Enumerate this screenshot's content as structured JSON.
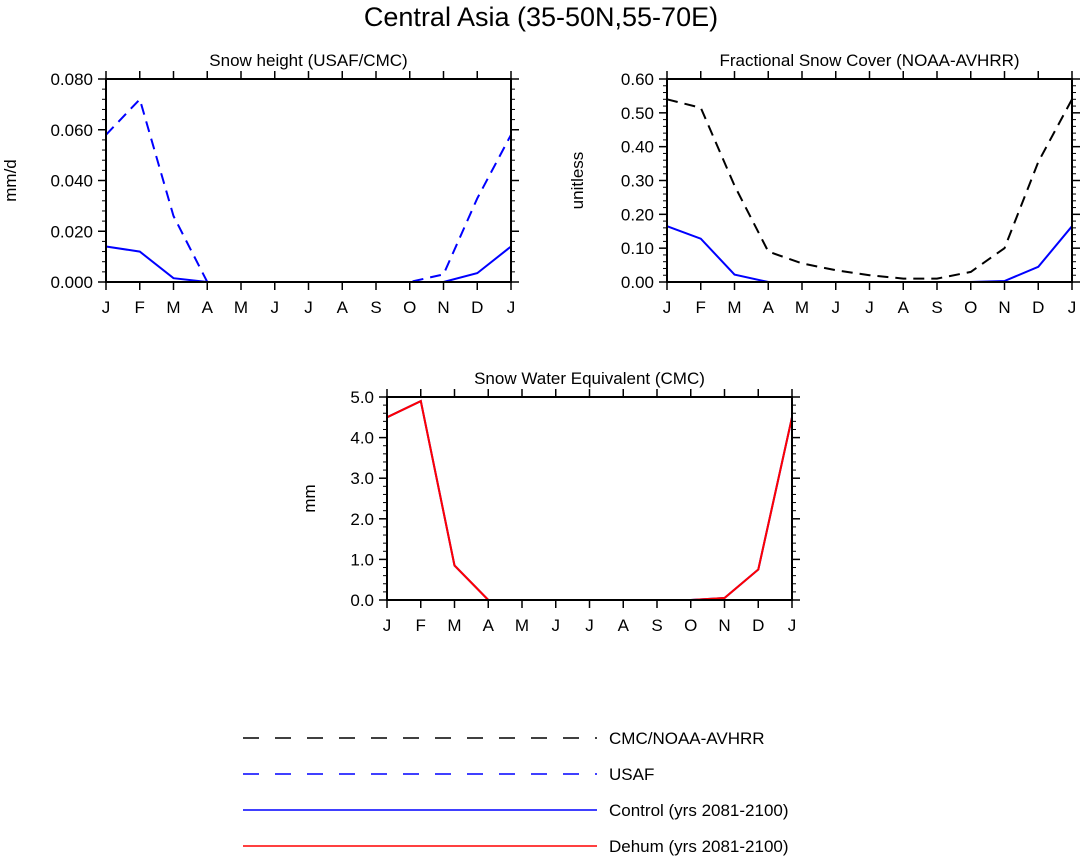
{
  "figure": {
    "title": "Central Asia (35-50N,55-70E)"
  },
  "legend": [
    {
      "name": "CMC/NOAA-AVHRR",
      "color": "#000000",
      "dash": true
    },
    {
      "name": "USAF",
      "color": "#0000ff",
      "dash": true
    },
    {
      "name": "Control (yrs 2081-2100)",
      "color": "#0000ff",
      "dash": false
    },
    {
      "name": "Dehum (yrs 2081-2100)",
      "color": "#ff0000",
      "dash": false
    }
  ],
  "chart_data": [
    {
      "type": "line",
      "title": "Snow height (USAF/CMC)",
      "xlabel": "",
      "ylabel": "mm/d",
      "categories": [
        "J",
        "F",
        "M",
        "A",
        "M",
        "J",
        "J",
        "A",
        "S",
        "O",
        "N",
        "D",
        "J"
      ],
      "ylim": [
        0,
        0.08
      ],
      "yticks": [
        "0.000",
        "0.020",
        "0.040",
        "0.060",
        "0.080"
      ],
      "yticks_values": [
        0,
        0.02,
        0.04,
        0.06,
        0.08
      ],
      "series": [
        {
          "name": "USAF",
          "color": "#0000ff",
          "dash": true,
          "values": [
            0.058,
            0.072,
            0.026,
            0.0,
            0.0,
            0.0,
            0.0,
            0.0,
            0.0,
            0.0,
            0.003,
            0.033,
            0.058
          ]
        },
        {
          "name": "Control (yrs 2081-2100)",
          "color": "#0000ff",
          "dash": false,
          "values": [
            0.014,
            0.012,
            0.0015,
            0.0,
            0.0,
            0.0,
            0.0,
            0.0,
            0.0,
            0.0,
            0.0,
            0.0035,
            0.014
          ]
        },
        {
          "name": "Dehum (yrs 2081-2100)",
          "color": "#ff0000",
          "dash": false,
          "values": [
            0.0,
            0.0,
            0.0,
            0.0,
            0.0,
            0.0,
            0.0,
            0.0,
            0.0,
            0.0,
            0.0,
            0.0,
            0.0
          ]
        }
      ]
    },
    {
      "type": "line",
      "title": "Fractional Snow Cover (NOAA-AVHRR)",
      "xlabel": "",
      "ylabel": "unitless",
      "categories": [
        "J",
        "F",
        "M",
        "A",
        "M",
        "J",
        "J",
        "A",
        "S",
        "O",
        "N",
        "D",
        "J"
      ],
      "ylim": [
        0,
        0.6
      ],
      "yticks": [
        "0.00",
        "0.10",
        "0.20",
        "0.30",
        "0.40",
        "0.50",
        "0.60"
      ],
      "yticks_values": [
        0,
        0.1,
        0.2,
        0.3,
        0.4,
        0.5,
        0.6
      ],
      "series": [
        {
          "name": "CMC/NOAA-AVHRR",
          "color": "#000000",
          "dash": true,
          "values": [
            0.54,
            0.515,
            0.285,
            0.09,
            0.055,
            0.035,
            0.02,
            0.01,
            0.01,
            0.03,
            0.1,
            0.355,
            0.54
          ]
        },
        {
          "name": "Control (yrs 2081-2100)",
          "color": "#0000ff",
          "dash": false,
          "values": [
            0.165,
            0.128,
            0.022,
            0.0,
            0.0,
            0.0,
            0.0,
            0.0,
            0.0,
            0.0,
            0.003,
            0.045,
            0.165
          ]
        },
        {
          "name": "Dehum (yrs 2081-2100)",
          "color": "#ff0000",
          "dash": false,
          "values": [
            0.0,
            0.0,
            0.0,
            0.0,
            0.0,
            0.0,
            0.0,
            0.0,
            0.0,
            0.0,
            0.0,
            0.0,
            0.0
          ]
        }
      ]
    },
    {
      "type": "line",
      "title": "Snow Water Equivalent (CMC)",
      "xlabel": "",
      "ylabel": "mm",
      "categories": [
        "J",
        "F",
        "M",
        "A",
        "M",
        "J",
        "J",
        "A",
        "S",
        "O",
        "N",
        "D",
        "J"
      ],
      "ylim": [
        0,
        5.0
      ],
      "yticks": [
        "0.0",
        "1.0",
        "2.0",
        "3.0",
        "4.0",
        "5.0"
      ],
      "yticks_values": [
        0,
        1,
        2,
        3,
        4,
        5
      ],
      "series": [
        {
          "name": "Control (yrs 2081-2100)",
          "color": "#0000ff",
          "dash": false,
          "values": [
            4.5,
            4.9,
            0.85,
            0.0,
            0.0,
            0.0,
            0.0,
            0.0,
            0.0,
            0.0,
            0.05,
            0.75,
            4.5
          ]
        },
        {
          "name": "Dehum (yrs 2081-2100)",
          "color": "#ff0000",
          "dash": false,
          "values": [
            4.5,
            4.9,
            0.85,
            0.0,
            0.0,
            0.0,
            0.0,
            0.0,
            0.0,
            0.0,
            0.05,
            0.75,
            4.5
          ]
        }
      ]
    }
  ]
}
